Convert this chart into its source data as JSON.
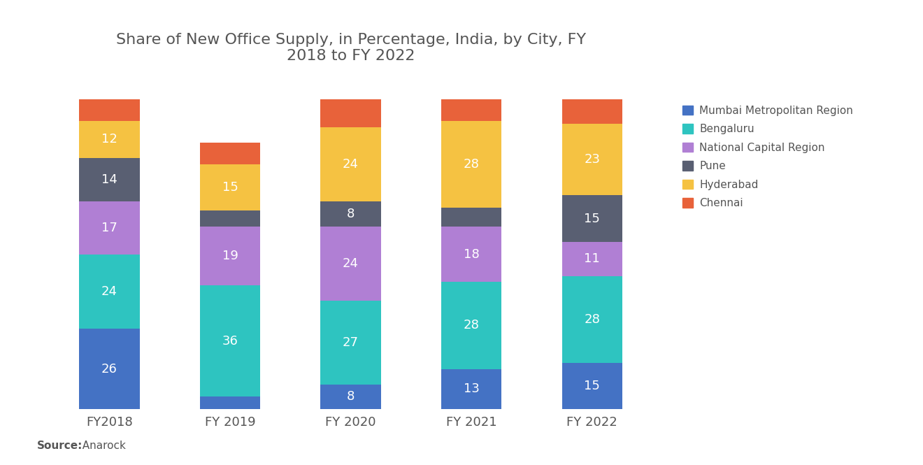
{
  "title": "Share of New Office Supply, in Percentage, India, by City, FY\n2018 to FY 2022",
  "categories": [
    "FY2018",
    "FY 2019",
    "FY 2020",
    "FY 2021",
    "FY 2022"
  ],
  "series": {
    "Mumbai Metropolitan Region": [
      26,
      4,
      8,
      13,
      15
    ],
    "Bengaluru": [
      24,
      36,
      27,
      28,
      28
    ],
    "National Capital Region": [
      17,
      19,
      24,
      18,
      11
    ],
    "Pune": [
      14,
      5,
      8,
      6,
      15
    ],
    "Hyderabad": [
      12,
      15,
      24,
      28,
      23
    ],
    "Chennai": [
      7,
      7,
      9,
      7,
      8
    ]
  },
  "labels": {
    "Mumbai Metropolitan Region": [
      26,
      null,
      8,
      13,
      15
    ],
    "Bengaluru": [
      24,
      36,
      27,
      28,
      28
    ],
    "National Capital Region": [
      17,
      19,
      24,
      18,
      11
    ],
    "Pune": [
      14,
      null,
      8,
      null,
      15
    ],
    "Hyderabad": [
      12,
      15,
      24,
      28,
      23
    ],
    "Chennai": [
      null,
      null,
      null,
      null,
      null
    ]
  },
  "colors": {
    "Mumbai Metropolitan Region": "#4472C4",
    "Bengaluru": "#2EC4C0",
    "National Capital Region": "#B07FD4",
    "Pune": "#595F72",
    "Hyderabad": "#F5C242",
    "Chennai": "#E8623A"
  },
  "legend_order": [
    "Mumbai Metropolitan Region",
    "Bengaluru",
    "National Capital Region",
    "Pune",
    "Hyderabad",
    "Chennai"
  ],
  "source_bold": "Source:",
  "source_normal": "  Anarock",
  "background_color": "#FFFFFF",
  "bar_width": 0.5,
  "title_fontsize": 16,
  "label_fontsize": 13,
  "tick_fontsize": 13,
  "source_fontsize": 11,
  "legend_fontsize": 11
}
